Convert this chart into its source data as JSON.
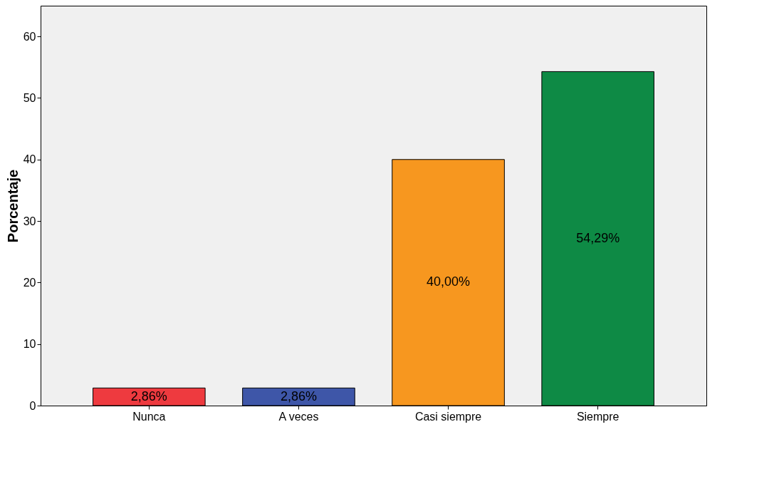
{
  "chart_data": {
    "type": "bar",
    "ylabel": "Porcentaje",
    "categories": [
      "Nunca",
      "A veces",
      "Casi siempre",
      "Siempre"
    ],
    "values": [
      2.86,
      2.86,
      40.0,
      54.29
    ],
    "colors": [
      "#ee3a3f",
      "#3e56a8",
      "#f7971f",
      "#0e8a45"
    ],
    "value_labels": [
      "2,86%",
      "2,86%",
      "40,00%",
      "54,29%"
    ],
    "ylim": [
      0,
      65
    ],
    "yticks": [
      0,
      10,
      20,
      30,
      40,
      50,
      60
    ],
    "grid": false
  }
}
